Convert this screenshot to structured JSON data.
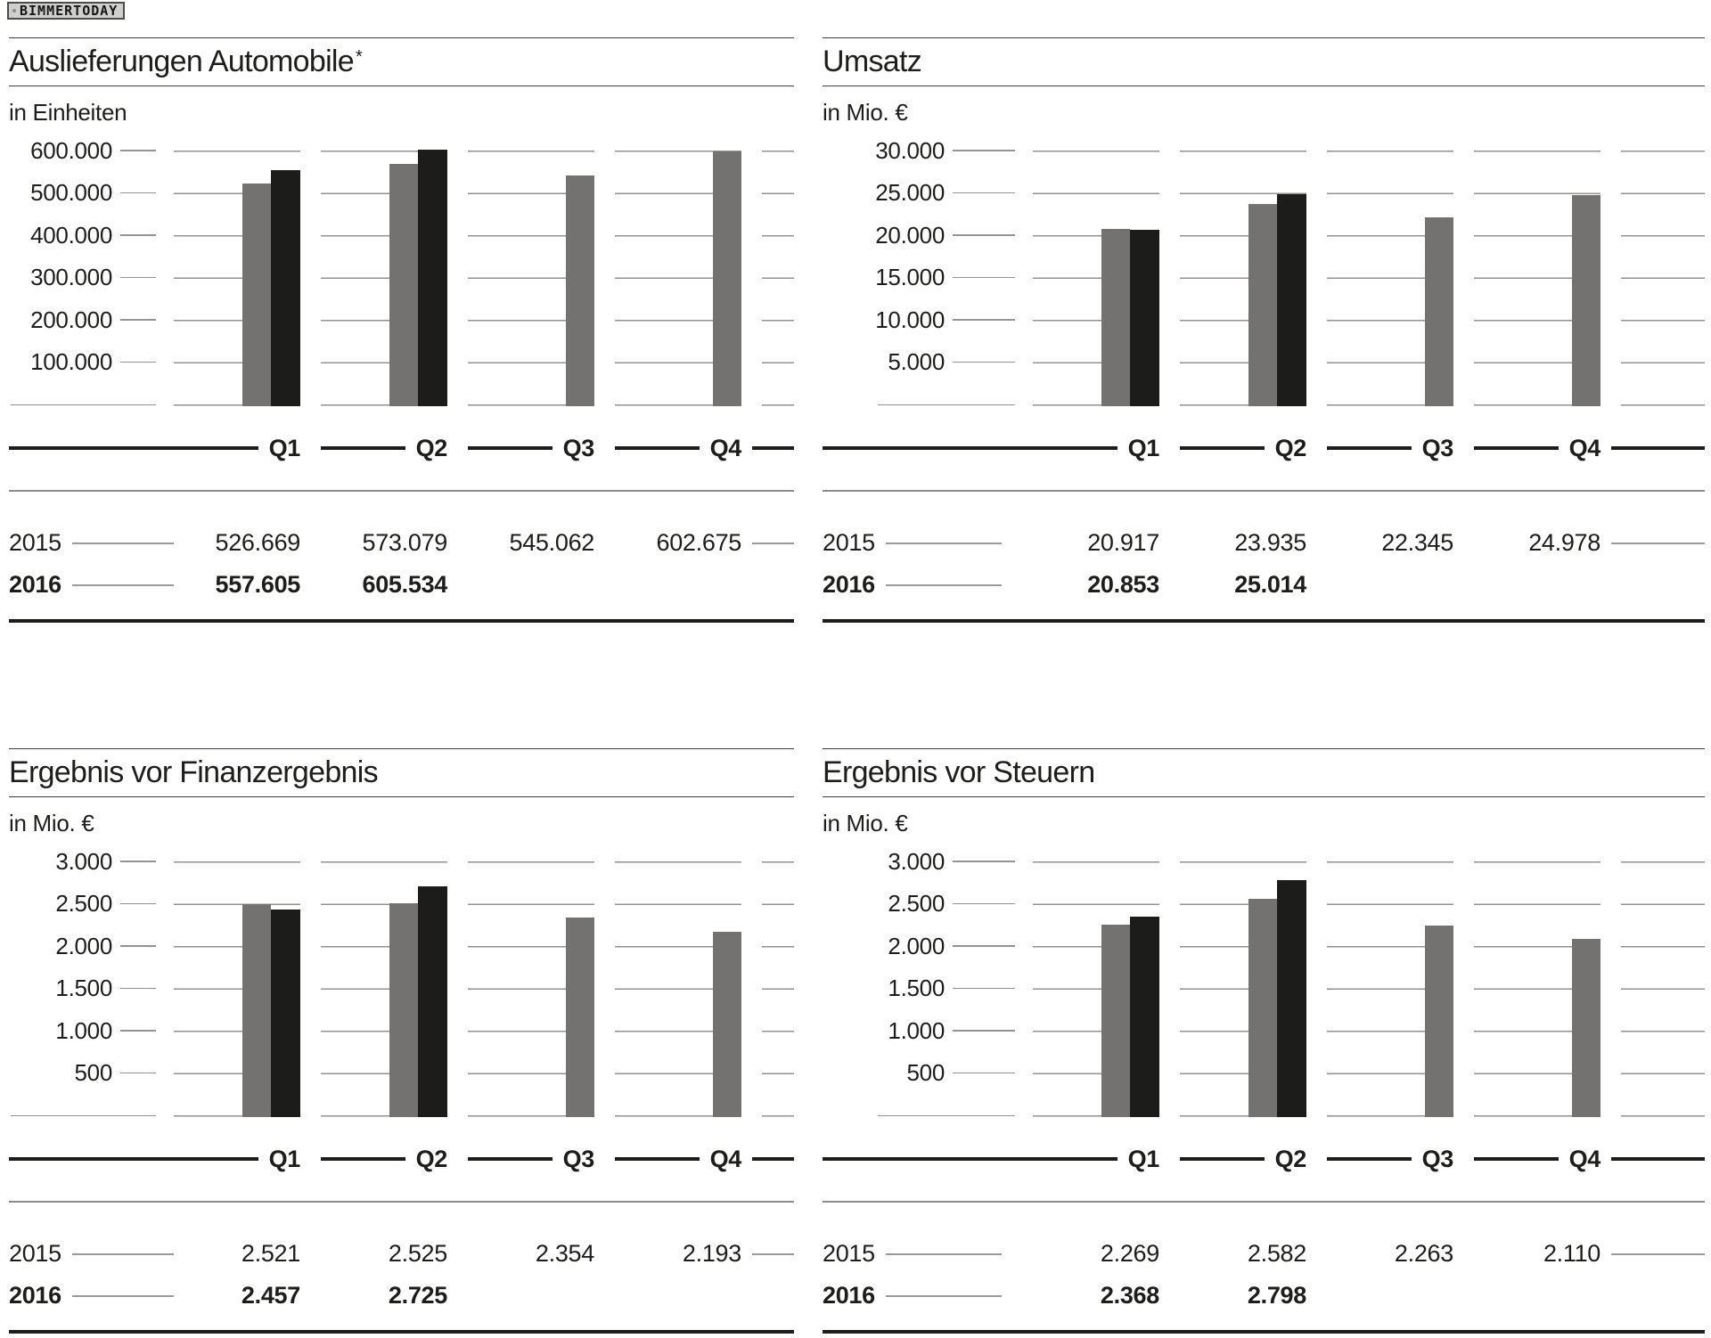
{
  "watermark": "BIMMERTODAY",
  "quarters": [
    "Q1",
    "Q2",
    "Q3",
    "Q4"
  ],
  "colors": {
    "bar_2015": "#747270",
    "bar_2016": "#1c1c1a",
    "gridline": "#929292",
    "axis_line": "#1d1d1b",
    "leader_line": "#9a9a9a",
    "separator": "#8c8c8c",
    "text": "#1d1d1b",
    "watermark_bg": "#cfcfcd",
    "watermark_border": "#4d4d4b"
  },
  "chart_data": [
    {
      "type": "bar",
      "title": "Auslieferungen Automobile",
      "title_sup": "*",
      "ylabel": "in Einheiten",
      "categories": [
        "Q1",
        "Q2",
        "Q3",
        "Q4"
      ],
      "ylim": [
        0,
        600000
      ],
      "y_step": 100000,
      "y_tick_labels": [
        "600.000",
        "500.000",
        "400.000",
        "300.000",
        "200.000",
        "100.000"
      ],
      "grid": true,
      "legend_position": "none",
      "series": [
        {
          "name": "2015",
          "values": [
            526669,
            573079,
            545062,
            602675
          ]
        },
        {
          "name": "2016",
          "values": [
            557605,
            605534,
            null,
            null
          ]
        }
      ]
    },
    {
      "type": "bar",
      "title": "Umsatz",
      "title_sup": "",
      "ylabel": "in Mio. €",
      "categories": [
        "Q1",
        "Q2",
        "Q3",
        "Q4"
      ],
      "ylim": [
        0,
        30000
      ],
      "y_step": 5000,
      "y_tick_labels": [
        "30.000",
        "25.000",
        "20.000",
        "15.000",
        "10.000",
        "5.000"
      ],
      "grid": true,
      "legend_position": "none",
      "series": [
        {
          "name": "2015",
          "values": [
            20917,
            23935,
            22345,
            24978
          ]
        },
        {
          "name": "2016",
          "values": [
            20853,
            25014,
            null,
            null
          ]
        }
      ]
    },
    {
      "type": "bar",
      "title": "Ergebnis vor Finanzergebnis",
      "title_sup": "",
      "ylabel": "in Mio. €",
      "categories": [
        "Q1",
        "Q2",
        "Q3",
        "Q4"
      ],
      "ylim": [
        0,
        3000
      ],
      "y_step": 500,
      "y_tick_labels": [
        "3.000",
        "2.500",
        "2.000",
        "1.500",
        "1.000",
        "500"
      ],
      "grid": true,
      "legend_position": "none",
      "series": [
        {
          "name": "2015",
          "values": [
            2521,
            2525,
            2354,
            2193
          ]
        },
        {
          "name": "2016",
          "values": [
            2457,
            2725,
            null,
            null
          ]
        }
      ]
    },
    {
      "type": "bar",
      "title": "Ergebnis vor Steuern",
      "title_sup": "",
      "ylabel": "in Mio. €",
      "categories": [
        "Q1",
        "Q2",
        "Q3",
        "Q4"
      ],
      "ylim": [
        0,
        3000
      ],
      "y_step": 500,
      "y_tick_labels": [
        "3.000",
        "2.500",
        "2.000",
        "1.500",
        "1.000",
        "500"
      ],
      "grid": true,
      "legend_position": "none",
      "series": [
        {
          "name": "2015",
          "values": [
            2269,
            2582,
            2263,
            2110
          ]
        },
        {
          "name": "2016",
          "values": [
            2368,
            2798,
            null,
            null
          ]
        }
      ]
    }
  ]
}
